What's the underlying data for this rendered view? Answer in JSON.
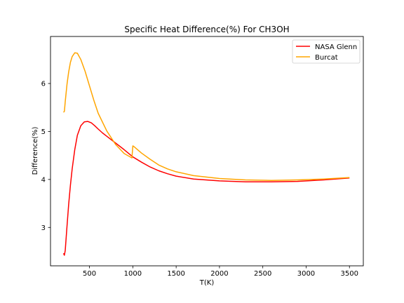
{
  "chart_data": {
    "type": "line",
    "title": "Specific Heat Difference(%) For CH3OH",
    "xlabel": "T(K)",
    "ylabel": "Difference(%)",
    "xlim": [
      50,
      3660
    ],
    "ylim": [
      2.2,
      6.98
    ],
    "xticks": [
      500,
      1000,
      1500,
      2000,
      2500,
      3000,
      3500
    ],
    "yticks": [
      3,
      4,
      5,
      6
    ],
    "grid": false,
    "legend_position": "top-right",
    "series": [
      {
        "name": "NASA Glenn",
        "color": "#ff0000",
        "x": [
          200,
          210,
          220,
          240,
          260,
          280,
          300,
          330,
          360,
          400,
          440,
          480,
          520,
          560,
          600,
          650,
          700,
          800,
          900,
          1000,
          1100,
          1200,
          1300,
          1400,
          1500,
          1700,
          2000,
          2300,
          2600,
          2900,
          3200,
          3500
        ],
        "y": [
          2.46,
          2.42,
          2.52,
          3.02,
          3.48,
          3.88,
          4.22,
          4.62,
          4.92,
          5.12,
          5.2,
          5.21,
          5.18,
          5.12,
          5.05,
          4.97,
          4.9,
          4.76,
          4.62,
          4.47,
          4.36,
          4.26,
          4.18,
          4.12,
          4.07,
          4.01,
          3.97,
          3.95,
          3.95,
          3.96,
          3.99,
          4.03
        ]
      },
      {
        "name": "Burcat",
        "color": "#ffa500",
        "x": [
          200,
          210,
          220,
          240,
          260,
          280,
          300,
          330,
          360,
          400,
          450,
          500,
          550,
          600,
          700,
          800,
          900,
          990,
          1000,
          1010,
          1100,
          1200,
          1300,
          1400,
          1500,
          1700,
          2000,
          2300,
          2600,
          2900,
          3200,
          3500
        ],
        "y": [
          5.4,
          5.42,
          5.62,
          5.98,
          6.24,
          6.44,
          6.56,
          6.64,
          6.63,
          6.5,
          6.25,
          5.95,
          5.65,
          5.38,
          5.01,
          4.73,
          4.54,
          4.45,
          4.7,
          4.69,
          4.55,
          4.42,
          4.3,
          4.22,
          4.16,
          4.08,
          4.02,
          3.99,
          3.98,
          3.99,
          4.01,
          4.04
        ]
      }
    ]
  }
}
